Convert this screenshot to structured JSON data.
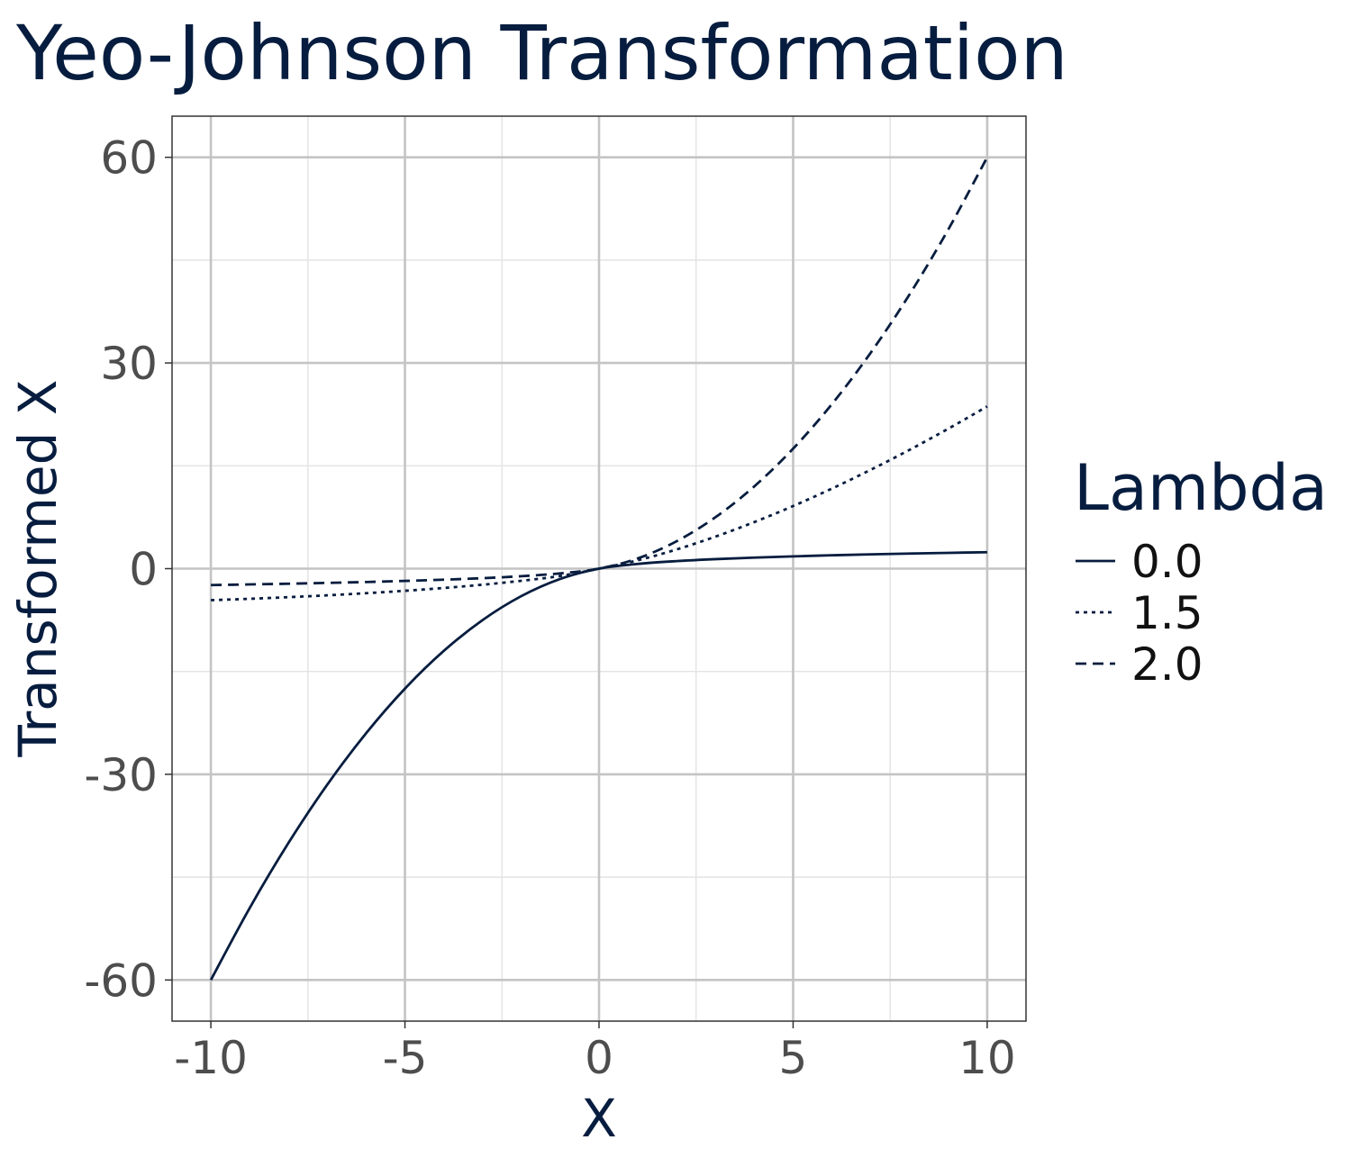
{
  "chart_data": {
    "type": "line",
    "title": "Yeo-Johnson Transformation",
    "xlabel": "X",
    "ylabel": "Transformed X",
    "xlim": [
      -11,
      11
    ],
    "ylim": [
      -66,
      66
    ],
    "x_ticks": [
      -10,
      -5,
      0,
      5,
      10
    ],
    "x_tick_labels": [
      "-10",
      "-5",
      "0",
      "5",
      "10"
    ],
    "y_ticks": [
      -60,
      -30,
      0,
      30,
      60
    ],
    "y_tick_labels": [
      "-60",
      "-30",
      "0",
      "30",
      "60"
    ],
    "grid": true,
    "legend": {
      "title": "Lambda",
      "position": "right"
    },
    "line_color": "#071d3f",
    "x": [
      -10,
      -9,
      -8,
      -7,
      -6,
      -5,
      -4,
      -3,
      -2,
      -1,
      0,
      1,
      2,
      3,
      4,
      5,
      6,
      7,
      8,
      9,
      10
    ],
    "series": [
      {
        "name": "0.0",
        "linestyle": "solid",
        "values": [
          -60,
          -49.5,
          -40,
          -31.5,
          -24,
          -17.5,
          -12,
          -7.5,
          -4,
          -1.5,
          0,
          0.69,
          1.1,
          1.39,
          1.61,
          1.79,
          1.95,
          2.08,
          2.2,
          2.3,
          2.4
        ]
      },
      {
        "name": "1.5",
        "linestyle": "dotted",
        "values": [
          -4.6,
          -4.4,
          -4.16,
          -3.89,
          -3.58,
          -3.23,
          -2.82,
          -2.34,
          -1.77,
          -1.07,
          0,
          1.22,
          2.8,
          4.67,
          6.79,
          9.13,
          11.68,
          14.42,
          17.33,
          20.42,
          23.66
        ]
      },
      {
        "name": "2.0",
        "linestyle": "dashed",
        "values": [
          -2.4,
          -2.3,
          -2.2,
          -2.08,
          -1.95,
          -1.79,
          -1.61,
          -1.39,
          -1.1,
          -0.69,
          0,
          1.5,
          4,
          7.5,
          12,
          17.5,
          24,
          31.5,
          40,
          49.5,
          60
        ]
      }
    ]
  }
}
